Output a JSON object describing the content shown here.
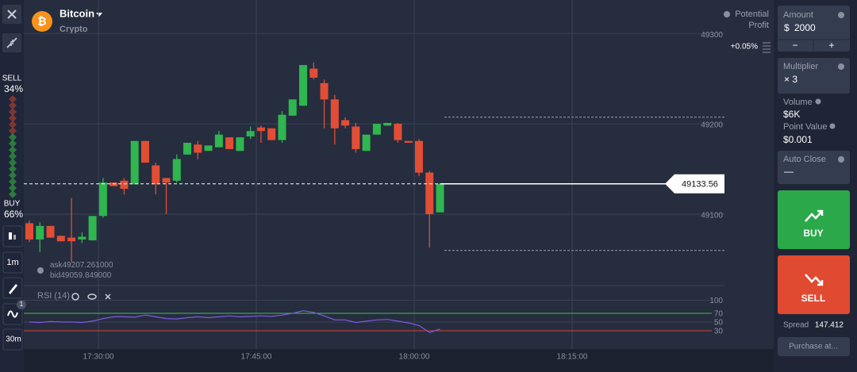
{
  "header": {
    "logo_symbol": "₿",
    "asset": "Bitcoin",
    "category": "Crypto"
  },
  "sidebar": {
    "sell_label": "SELL",
    "sell_percent": "34%",
    "buy_label": "BUY",
    "buy_percent": "66%",
    "timeframe_button": "1m",
    "indicator_badge": "1",
    "period_button": "30m"
  },
  "chart_data": [
    {
      "type": "candlestick",
      "ylim": [
        49021,
        49337
      ],
      "yticks": [
        49100,
        49200,
        49300
      ],
      "up_color": "#2fb64f",
      "down_color": "#e14e35",
      "time_labels": [
        "17:30:00",
        "17:45:00",
        "18:00:00",
        "18:15:00"
      ],
      "current_price": 49133.56,
      "ask": {
        "label": "ask",
        "value": 49207.261,
        "value_label": "49207.261000"
      },
      "bid": {
        "label": "bid",
        "value": 49059.849,
        "value_label": "49059.849000"
      },
      "candles": {
        "open": [
          49090,
          49072,
          49087,
          49076,
          49074,
          49072,
          49071,
          49098,
          49135,
          49137,
          49133,
          49181,
          49154,
          49140,
          49137,
          49166,
          49177,
          49170,
          49174,
          49185,
          49170,
          49186,
          49196,
          49195,
          49182,
          49209,
          49220,
          49261,
          49245,
          49227,
          49204,
          49197,
          49170,
          49188,
          49198,
          49200,
          49181,
          49181,
          49146,
          49102
        ],
        "high": [
          49093,
          49091,
          49087,
          49076,
          49118,
          49080,
          49098,
          49140,
          49135,
          49140,
          49181,
          49181,
          49157,
          49140,
          49166,
          49179,
          49181,
          49176,
          49192,
          49185,
          49185,
          49197,
          49198,
          49195,
          49214,
          49227,
          49265,
          49268,
          49249,
          49232,
          49207,
          49201,
          49188,
          49200,
          49201,
          49201,
          49181,
          49183,
          49148,
          49133.56
        ],
        "low": [
          49069,
          49058,
          49074,
          49070,
          49047,
          49068,
          49071,
          49096,
          49131,
          49122,
          49133,
          49157,
          49122,
          49100,
          49135,
          49166,
          49161,
          49170,
          49174,
          49172,
          49170,
          49183,
          49179,
          49182,
          49179,
          49209,
          49220,
          49249,
          49195,
          49177,
          49195,
          49168,
          49170,
          49188,
          49198,
          49179,
          49179,
          49142,
          49063,
          49102
        ],
        "close": [
          49072,
          49087,
          49074,
          49070,
          49070,
          49075,
          49098,
          49135,
          49131,
          49128,
          49181,
          49157,
          49133,
          49135,
          49161,
          49179,
          49168,
          49176,
          49188,
          49172,
          49185,
          49192,
          49192,
          49182,
          49210,
          49227,
          49265,
          49251,
          49227,
          49195,
          49198,
          49172,
          49188,
          49200,
          49201,
          49182,
          49179,
          49146,
          49100,
          49133.56
        ]
      }
    },
    {
      "type": "line",
      "title": "RSI (14)",
      "ylim": [
        0,
        120
      ],
      "yticks": [
        30,
        50,
        70,
        100
      ],
      "color": "#7d5ce0",
      "upper_color": "#3fbf4f",
      "lower_color": "#d8443a",
      "values": [
        50,
        49,
        51,
        50,
        50,
        49,
        52,
        58,
        62,
        62,
        61,
        66,
        62,
        58,
        57,
        60,
        62,
        60,
        62,
        64,
        62,
        63,
        64,
        63,
        66,
        70,
        76,
        72,
        64,
        55,
        55,
        49,
        52,
        55,
        56,
        52,
        48,
        42,
        26,
        34
      ]
    }
  ],
  "trade_panel": {
    "potential_profit": [
      "Potential",
      "Profit"
    ],
    "profit_value": "+0.05%",
    "amount_label": "Amount",
    "amount_currency": "$",
    "amount_value": "2000",
    "minus": "−",
    "plus": "+",
    "multiplier_label": "Multiplier",
    "multiplier_value": "× 3",
    "volume_label": "Volume",
    "volume_value": "$6K",
    "point_value_label": "Point Value",
    "point_value": "$0.001",
    "auto_close_label": "Auto Close",
    "auto_close_value": "—",
    "buy": "BUY",
    "sell": "SELL",
    "spread_label": "Spread",
    "spread_value": "147.412",
    "purchase": "Purchase at..."
  }
}
